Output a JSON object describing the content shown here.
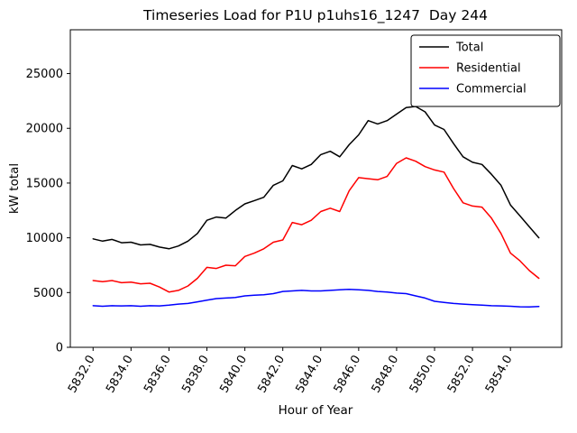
{
  "chart_data": {
    "type": "line",
    "title": "Timeseries Load for P1U p1uhs16_1247  Day 244",
    "xlabel": "Hour of Year",
    "ylabel": "kW total",
    "xlim": [
      5830.8,
      5856.7
    ],
    "ylim": [
      0,
      29000
    ],
    "xticks": [
      5832.0,
      5834.0,
      5836.0,
      5838.0,
      5840.0,
      5842.0,
      5844.0,
      5846.0,
      5848.0,
      5850.0,
      5852.0,
      5854.0
    ],
    "yticks": [
      0,
      5000,
      10000,
      15000,
      20000,
      25000
    ],
    "grid": false,
    "legend_position": "upper right",
    "x": [
      5832.0,
      5832.5,
      5833.0,
      5833.5,
      5834.0,
      5834.5,
      5835.0,
      5835.5,
      5836.0,
      5836.5,
      5837.0,
      5837.5,
      5838.0,
      5838.5,
      5839.0,
      5839.5,
      5840.0,
      5840.5,
      5841.0,
      5841.5,
      5842.0,
      5842.5,
      5843.0,
      5843.5,
      5844.0,
      5844.5,
      5845.0,
      5845.5,
      5846.0,
      5846.5,
      5847.0,
      5847.5,
      5848.0,
      5848.5,
      5849.0,
      5849.5,
      5850.0,
      5850.5,
      5851.0,
      5851.5,
      5852.0,
      5852.5,
      5853.0,
      5853.5,
      5854.0,
      5854.5,
      5855.0,
      5855.5
    ],
    "series": [
      {
        "name": "Total",
        "color": "#000000",
        "values": [
          9900,
          9700,
          9850,
          9550,
          9600,
          9350,
          9400,
          9150,
          9000,
          9250,
          9700,
          10400,
          11600,
          11900,
          11800,
          12500,
          13100,
          13400,
          13700,
          14800,
          15200,
          16600,
          16300,
          16700,
          17600,
          17900,
          17400,
          18500,
          19400,
          20700,
          20400,
          20700,
          21300,
          21900,
          22000,
          21500,
          20300,
          19900,
          18600,
          17400,
          16900,
          16700,
          15800,
          14800,
          13000,
          12000,
          11000,
          10000
        ]
      },
      {
        "name": "Residential",
        "color": "#ff0000",
        "values": [
          6100,
          6000,
          6100,
          5900,
          5950,
          5800,
          5850,
          5500,
          5050,
          5200,
          5600,
          6300,
          7300,
          7200,
          7500,
          7450,
          8300,
          8600,
          9000,
          9600,
          9800,
          11400,
          11200,
          11600,
          12400,
          12700,
          12400,
          14300,
          15500,
          15400,
          15300,
          15600,
          16800,
          17300,
          17000,
          16500,
          16200,
          16000,
          14500,
          13200,
          12900,
          12800,
          11800,
          10400,
          8600,
          7900,
          7000,
          6300
        ]
      },
      {
        "name": "Commercial",
        "color": "#0000ff",
        "values": [
          3800,
          3750,
          3800,
          3780,
          3800,
          3750,
          3800,
          3780,
          3850,
          3950,
          4000,
          4150,
          4300,
          4450,
          4500,
          4550,
          4700,
          4750,
          4800,
          4900,
          5100,
          5150,
          5200,
          5150,
          5150,
          5200,
          5250,
          5300,
          5250,
          5200,
          5100,
          5050,
          4950,
          4900,
          4700,
          4500,
          4200,
          4100,
          4000,
          3950,
          3900,
          3850,
          3800,
          3780,
          3750,
          3700,
          3680,
          3720
        ]
      }
    ]
  }
}
